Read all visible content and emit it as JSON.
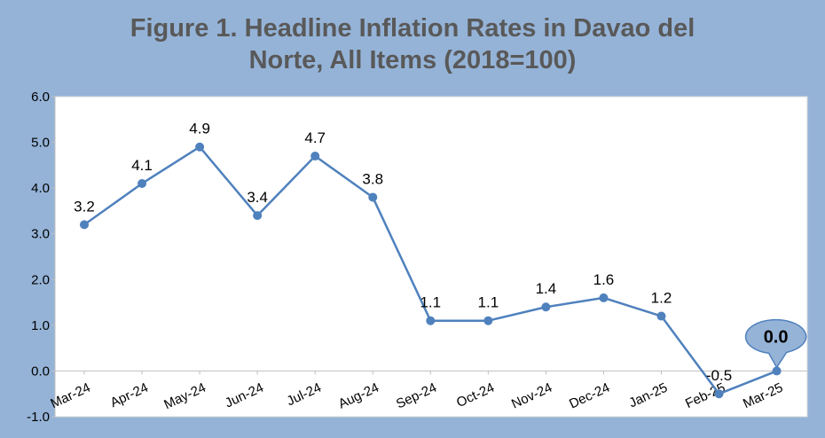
{
  "chart_data": {
    "type": "line",
    "title_lines": [
      "Figure 1. Headline Inflation Rates in Davao del",
      "Norte, All Items (2018=100)"
    ],
    "categories": [
      "Mar-24",
      "Apr-24",
      "May-24",
      "Jun-24",
      "Jul-24",
      "Aug-24",
      "Sep-24",
      "Oct-24",
      "Nov-24",
      "Dec-24",
      "Jan-25",
      "Feb-25",
      "Mar-25"
    ],
    "values": [
      3.2,
      4.1,
      4.9,
      3.4,
      4.7,
      3.8,
      1.1,
      1.1,
      1.4,
      1.6,
      1.2,
      -0.5,
      0.0
    ],
    "data_labels": [
      "3.2",
      "4.1",
      "4.9",
      "3.4",
      "4.7",
      "3.8",
      "1.1",
      "1.1",
      "1.4",
      "1.6",
      "1.2",
      "-0.5",
      "0.0"
    ],
    "y_ticks": [
      "6.0",
      "5.0",
      "4.0",
      "3.0",
      "2.0",
      "1.0",
      "0.0",
      "-1.0"
    ],
    "ylim": [
      -1.0,
      6.0
    ],
    "grid": false,
    "legend": false,
    "highlight_label": "0.0",
    "colors": {
      "background": "#95b3d7",
      "plot_area": "#ffffff",
      "line": "#4f81bd",
      "callout_fill": "#95b3d7",
      "title": "#595959"
    }
  }
}
